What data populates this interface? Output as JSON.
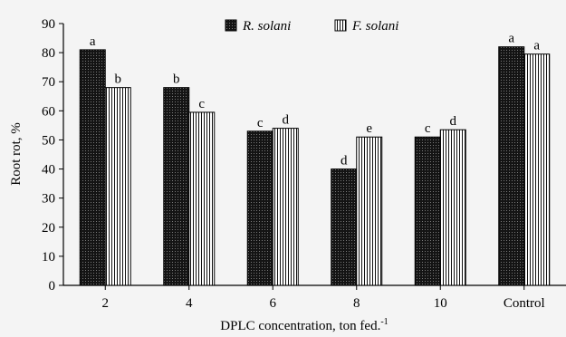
{
  "chart_data": {
    "type": "bar",
    "xlabel": "DPLC concentration, ton fed.",
    "xlabel_superscript": "-1",
    "ylabel": "Root rot, %",
    "ylim": [
      0,
      90
    ],
    "yticks": [
      0,
      10,
      20,
      30,
      40,
      50,
      60,
      70,
      80,
      90
    ],
    "categories": [
      "2",
      "4",
      "6",
      "8",
      "10",
      "Control"
    ],
    "series": [
      {
        "name": "R. solani",
        "values": [
          81,
          68,
          53,
          40,
          51,
          82
        ],
        "letters": [
          "a",
          "b",
          "c",
          "d",
          "c",
          "a"
        ],
        "color": "#1a1a1a",
        "pattern": "dotted-dark"
      },
      {
        "name": "F. solani",
        "values": [
          68,
          59.5,
          54,
          51,
          53.5,
          79.5
        ],
        "letters": [
          "b",
          "c",
          "d",
          "e",
          "d",
          "a"
        ],
        "color": "#ffffff",
        "pattern": "vertical-stripes"
      }
    ],
    "legend_position": "top-center",
    "grid": false
  }
}
